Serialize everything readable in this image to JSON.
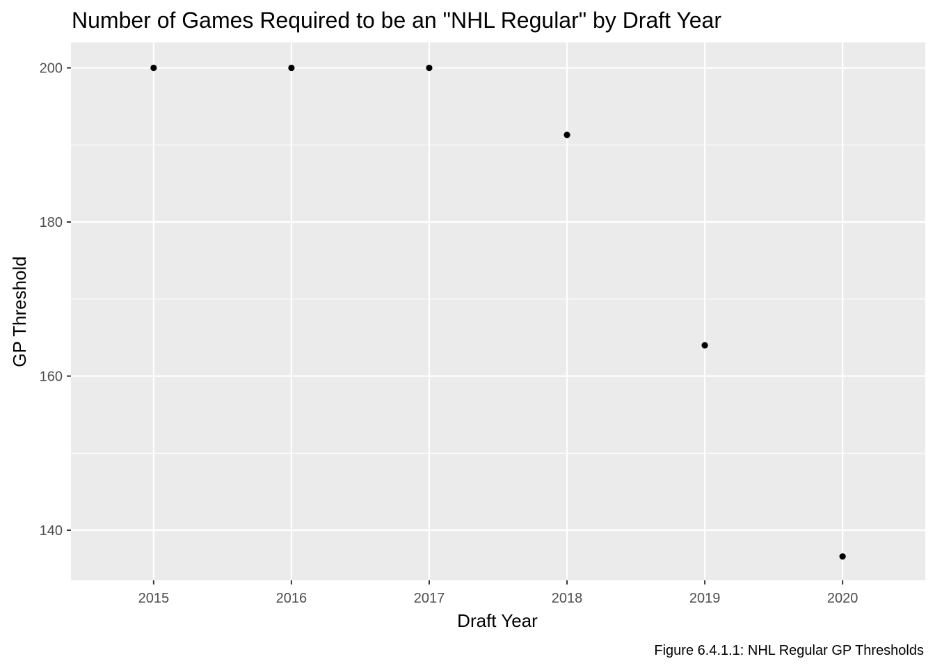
{
  "chart_data": {
    "type": "scatter",
    "title": "Number of Games Required to be an \"NHL Regular\" by Draft Year",
    "xlabel": "Draft Year",
    "ylabel": "GP Threshold",
    "caption": "Figure 6.4.1.1: NHL Regular GP Thresholds",
    "x": [
      2015,
      2016,
      2017,
      2018,
      2019,
      2020
    ],
    "y": [
      200,
      200,
      200,
      191.3,
      164,
      136.6
    ],
    "x_ticks": [
      "2015",
      "2016",
      "2017",
      "2018",
      "2019",
      "2020"
    ],
    "y_ticks": [
      "140",
      "160",
      "180",
      "200"
    ],
    "xlim": [
      2014.4,
      2020.6
    ],
    "ylim": [
      133.5,
      203.3
    ],
    "grid": true,
    "colors": {
      "panel_background": "#ebebeb",
      "grid_line": "#ffffff",
      "point": "#000000",
      "tick_label": "#4d4d4d",
      "tick_mark": "#333333"
    }
  }
}
